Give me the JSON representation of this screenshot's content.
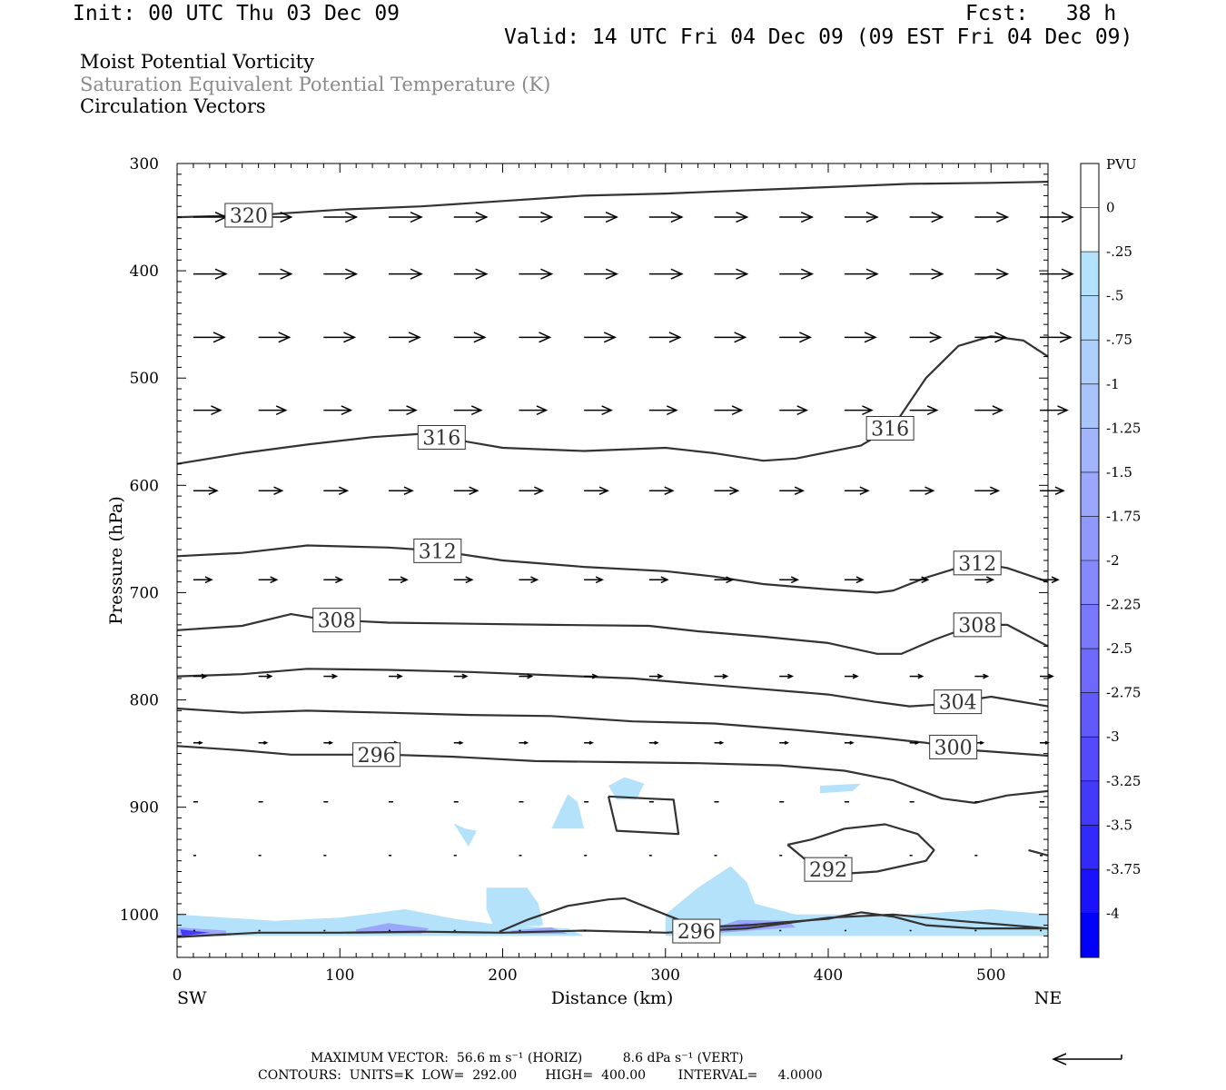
{
  "header": {
    "init": "Init: 00 UTC Thu 03 Dec 09",
    "fcst": "Fcst:   38 h",
    "valid": "Valid: 14 UTC Fri 04 Dec 09 (09 EST Fri 04 Dec 09)"
  },
  "titles": {
    "line1": "Moist Potential Vorticity",
    "line2": "Saturation Equivalent Potential Temperature (K)",
    "line3": "Circulation Vectors"
  },
  "colors": {
    "contour": "#333333",
    "vector": "#000000",
    "gray_title": "#8a8a8a"
  },
  "chart_data": {
    "type": "contour",
    "xlabel": "Distance (km)",
    "ylabel": "Pressure (hPa)",
    "xlim": [
      0,
      535
    ],
    "ylim": [
      300,
      1040
    ],
    "y_scale": "linear-inverted",
    "x_ticks": [
      0,
      100,
      200,
      300,
      400,
      500
    ],
    "y_ticks": [
      300,
      400,
      500,
      600,
      700,
      800,
      900,
      1000
    ],
    "x_end_labels": {
      "left": "SW",
      "right": "NE"
    },
    "colorbar": {
      "unit": "PVU",
      "levels": [
        "0",
        "-.25",
        "-.5",
        "-.75",
        "-1",
        "-1.25",
        "-1.5",
        "-1.75",
        "-2",
        "-2.25",
        "-2.5",
        "-2.75",
        "-3",
        "-3.25",
        "-3.5",
        "-3.75",
        "-4"
      ],
      "colors": [
        "#ffffff",
        "#ffffff",
        "#b4e2fa",
        "#b1d9fb",
        "#aecffb",
        "#a9c3fb",
        "#a2b5fb",
        "#9aa7fb",
        "#9198fb",
        "#8689fb",
        "#7b79fb",
        "#6f69fb",
        "#6259fb",
        "#5449fb",
        "#4339fb",
        "#3229fb",
        "#1a12fb",
        "#0000fb"
      ]
    },
    "contour_labels": [
      "320",
      "316",
      "316",
      "312",
      "312",
      "308",
      "308",
      "304",
      "300",
      "296",
      "292",
      "296"
    ],
    "contours": [
      {
        "level": 320,
        "points": [
          [
            0,
            350
          ],
          [
            50,
            348
          ],
          [
            100,
            343
          ],
          [
            150,
            340
          ],
          [
            200,
            335
          ],
          [
            250,
            330
          ],
          [
            300,
            328
          ],
          [
            350,
            325
          ],
          [
            400,
            322
          ],
          [
            450,
            319
          ],
          [
            500,
            318
          ],
          [
            535,
            317
          ]
        ]
      },
      {
        "level": 316,
        "points": [
          [
            0,
            580
          ],
          [
            40,
            570
          ],
          [
            80,
            562
          ],
          [
            120,
            555
          ],
          [
            150,
            552
          ],
          [
            200,
            565
          ],
          [
            250,
            568
          ],
          [
            300,
            565
          ],
          [
            330,
            570
          ],
          [
            360,
            577
          ],
          [
            380,
            575
          ],
          [
            420,
            563
          ],
          [
            440,
            545
          ],
          [
            460,
            500
          ],
          [
            480,
            470
          ],
          [
            500,
            461
          ],
          [
            520,
            465
          ],
          [
            535,
            480
          ]
        ]
      },
      {
        "level": 312,
        "points": [
          [
            0,
            666
          ],
          [
            40,
            663
          ],
          [
            80,
            656
          ],
          [
            130,
            658
          ],
          [
            160,
            661
          ],
          [
            200,
            670
          ],
          [
            250,
            676
          ],
          [
            300,
            680
          ],
          [
            330,
            685
          ],
          [
            360,
            692
          ],
          [
            400,
            697
          ],
          [
            430,
            700
          ],
          [
            440,
            698
          ],
          [
            460,
            686
          ],
          [
            490,
            672
          ],
          [
            510,
            677
          ],
          [
            535,
            690
          ]
        ]
      },
      {
        "level": 308,
        "points": [
          [
            0,
            735
          ],
          [
            40,
            731
          ],
          [
            70,
            720
          ],
          [
            90,
            725
          ],
          [
            130,
            728
          ],
          [
            180,
            729
          ],
          [
            230,
            730
          ],
          [
            290,
            731
          ],
          [
            320,
            736
          ],
          [
            360,
            741
          ],
          [
            400,
            747
          ],
          [
            430,
            757
          ],
          [
            445,
            757
          ],
          [
            465,
            744
          ],
          [
            490,
            730
          ],
          [
            510,
            730
          ],
          [
            535,
            750
          ]
        ]
      },
      {
        "level": 304,
        "points": [
          [
            0,
            778
          ],
          [
            40,
            776
          ],
          [
            80,
            771
          ],
          [
            130,
            772
          ],
          [
            180,
            774
          ],
          [
            230,
            777
          ],
          [
            280,
            780
          ],
          [
            320,
            785
          ],
          [
            360,
            790
          ],
          [
            400,
            795
          ],
          [
            430,
            802
          ],
          [
            450,
            806
          ],
          [
            470,
            804
          ],
          [
            500,
            797
          ],
          [
            535,
            806
          ]
        ]
      },
      {
        "level": 300,
        "points": [
          [
            0,
            808
          ],
          [
            40,
            812
          ],
          [
            80,
            810
          ],
          [
            130,
            812
          ],
          [
            180,
            814
          ],
          [
            230,
            815
          ],
          [
            280,
            820
          ],
          [
            330,
            822
          ],
          [
            380,
            828
          ],
          [
            430,
            835
          ],
          [
            460,
            840
          ],
          [
            490,
            847
          ],
          [
            535,
            852
          ]
        ]
      },
      {
        "level": 296,
        "points": [
          [
            0,
            843
          ],
          [
            40,
            847
          ],
          [
            70,
            851
          ],
          [
            100,
            851
          ],
          [
            130,
            851
          ],
          [
            170,
            853
          ],
          [
            220,
            857
          ],
          [
            270,
            858
          ],
          [
            320,
            859
          ],
          [
            370,
            861
          ],
          [
            410,
            866
          ],
          [
            440,
            875
          ],
          [
            470,
            892
          ],
          [
            490,
            896
          ],
          [
            510,
            889
          ],
          [
            535,
            885
          ]
        ]
      },
      {
        "level": 292,
        "points": [
          [
            265,
            890
          ],
          [
            290,
            892
          ],
          [
            305,
            893
          ],
          [
            308,
            925
          ],
          [
            270,
            922
          ],
          [
            265,
            890
          ]
        ]
      },
      {
        "level": 292,
        "points": [
          [
            375,
            935
          ],
          [
            390,
            954
          ],
          [
            410,
            962
          ],
          [
            430,
            960
          ],
          [
            460,
            950
          ],
          [
            465,
            940
          ],
          [
            455,
            925
          ],
          [
            435,
            916
          ],
          [
            410,
            920
          ],
          [
            390,
            930
          ],
          [
            375,
            935
          ]
        ]
      },
      {
        "level": 292,
        "points": [
          [
            523,
            940
          ],
          [
            535,
            945
          ]
        ]
      },
      {
        "level": 296,
        "points": [
          [
            198,
            1016
          ],
          [
            215,
            1005
          ],
          [
            240,
            992
          ],
          [
            265,
            986
          ],
          [
            275,
            985
          ],
          [
            300,
            1000
          ],
          [
            320,
            1012
          ],
          [
            350,
            1010
          ],
          [
            400,
            1004
          ],
          [
            420,
            998
          ],
          [
            440,
            1002
          ],
          [
            460,
            1010
          ],
          [
            490,
            1013
          ],
          [
            535,
            1013
          ]
        ]
      },
      {
        "level": 296,
        "points": [
          [
            0,
            1021
          ],
          [
            50,
            1017
          ],
          [
            100,
            1017
          ],
          [
            150,
            1016
          ],
          [
            200,
            1017
          ],
          [
            250,
            1015
          ],
          [
            300,
            1017
          ],
          [
            350,
            1013
          ],
          [
            400,
            1003
          ],
          [
            440,
            1000
          ],
          [
            480,
            1006
          ],
          [
            535,
            1013
          ]
        ]
      }
    ],
    "pv_shading": [
      {
        "level": -0.25,
        "points": [
          [
            0,
            1000
          ],
          [
            30,
            1003
          ],
          [
            60,
            1006
          ],
          [
            100,
            1003
          ],
          [
            140,
            995
          ],
          [
            170,
            1004
          ],
          [
            200,
            1010
          ],
          [
            240,
            1013
          ],
          [
            250,
            1020
          ],
          [
            0,
            1020
          ]
        ]
      },
      {
        "level": -0.25,
        "points": [
          [
            190,
            975
          ],
          [
            215,
            975
          ],
          [
            222,
            990
          ],
          [
            225,
            1010
          ],
          [
            195,
            1013
          ],
          [
            190,
            995
          ]
        ]
      },
      {
        "level": -0.25,
        "points": [
          [
            300,
            1000
          ],
          [
            320,
            975
          ],
          [
            340,
            955
          ],
          [
            350,
            970
          ],
          [
            355,
            990
          ],
          [
            380,
            1000
          ],
          [
            420,
            1000
          ],
          [
            450,
            1000
          ],
          [
            500,
            995
          ],
          [
            535,
            1000
          ],
          [
            535,
            1020
          ],
          [
            300,
            1020
          ]
        ]
      },
      {
        "level": -0.25,
        "points": [
          [
            230,
            920
          ],
          [
            240,
            888
          ],
          [
            246,
            895
          ],
          [
            250,
            920
          ]
        ]
      },
      {
        "level": -0.25,
        "points": [
          [
            170,
            915
          ],
          [
            177,
            920
          ],
          [
            184,
            922
          ],
          [
            179,
            937
          ]
        ]
      },
      {
        "level": -0.25,
        "points": [
          [
            265,
            880
          ],
          [
            275,
            872
          ],
          [
            287,
            878
          ],
          [
            282,
            893
          ],
          [
            270,
            893
          ]
        ]
      },
      {
        "level": -0.25,
        "points": [
          [
            395,
            880
          ],
          [
            420,
            878
          ],
          [
            415,
            885
          ],
          [
            395,
            887
          ]
        ]
      },
      {
        "level": -1.5,
        "points": [
          [
            0,
            1012
          ],
          [
            30,
            1015
          ],
          [
            30,
            1020
          ],
          [
            0,
            1020
          ]
        ]
      },
      {
        "level": -1.5,
        "points": [
          [
            110,
            1014
          ],
          [
            130,
            1008
          ],
          [
            155,
            1013
          ],
          [
            150,
            1018
          ],
          [
            110,
            1018
          ]
        ]
      },
      {
        "level": -1.5,
        "points": [
          [
            205,
            1015
          ],
          [
            230,
            1012
          ],
          [
            240,
            1018
          ],
          [
            205,
            1018
          ]
        ]
      },
      {
        "level": -1.5,
        "points": [
          [
            325,
            1015
          ],
          [
            345,
            1005
          ],
          [
            375,
            1006
          ],
          [
            380,
            1012
          ],
          [
            325,
            1018
          ]
        ]
      },
      {
        "level": -3.25,
        "points": [
          [
            2,
            1014
          ],
          [
            20,
            1017
          ],
          [
            3,
            1020
          ]
        ]
      },
      {
        "level": -2.25,
        "points": [
          [
            333,
            1012
          ],
          [
            350,
            1008
          ],
          [
            360,
            1012
          ],
          [
            338,
            1015
          ]
        ]
      }
    ],
    "vectors": {
      "rows": [
        {
          "p": 350,
          "dx": 36,
          "dy": 0
        },
        {
          "p": 403,
          "dx": 36,
          "dy": 0
        },
        {
          "p": 462,
          "dx": 34,
          "dy": 0
        },
        {
          "p": 530,
          "dx": 30,
          "dy": 0
        },
        {
          "p": 605,
          "dx": 26,
          "dy": 0
        },
        {
          "p": 688,
          "dx": 20,
          "dy": 0
        },
        {
          "p": 778,
          "dx": 14,
          "dy": 0
        },
        {
          "p": 840,
          "dx": 9,
          "dy": 0
        },
        {
          "p": 895,
          "dx": 5,
          "dy": 0
        },
        {
          "p": 945,
          "dx": 3,
          "dy": 0
        },
        {
          "p": 1015,
          "dx": 2,
          "dy": 0
        }
      ],
      "x_positions": [
        10,
        50,
        90,
        130,
        170,
        210,
        250,
        290,
        330,
        370,
        410,
        450,
        490,
        530
      ]
    },
    "reference_vector": {
      "dx": -42
    }
  },
  "footer": {
    "max_vector": "MAXIMUM VECTOR:  56.6 m s⁻¹ (HORIZ)          8.6 dPa s⁻¹ (VERT)",
    "contours": "CONTOURS:  UNITS=K  LOW=  292.00       HIGH=  400.00        INTERVAL=     4.0000"
  }
}
